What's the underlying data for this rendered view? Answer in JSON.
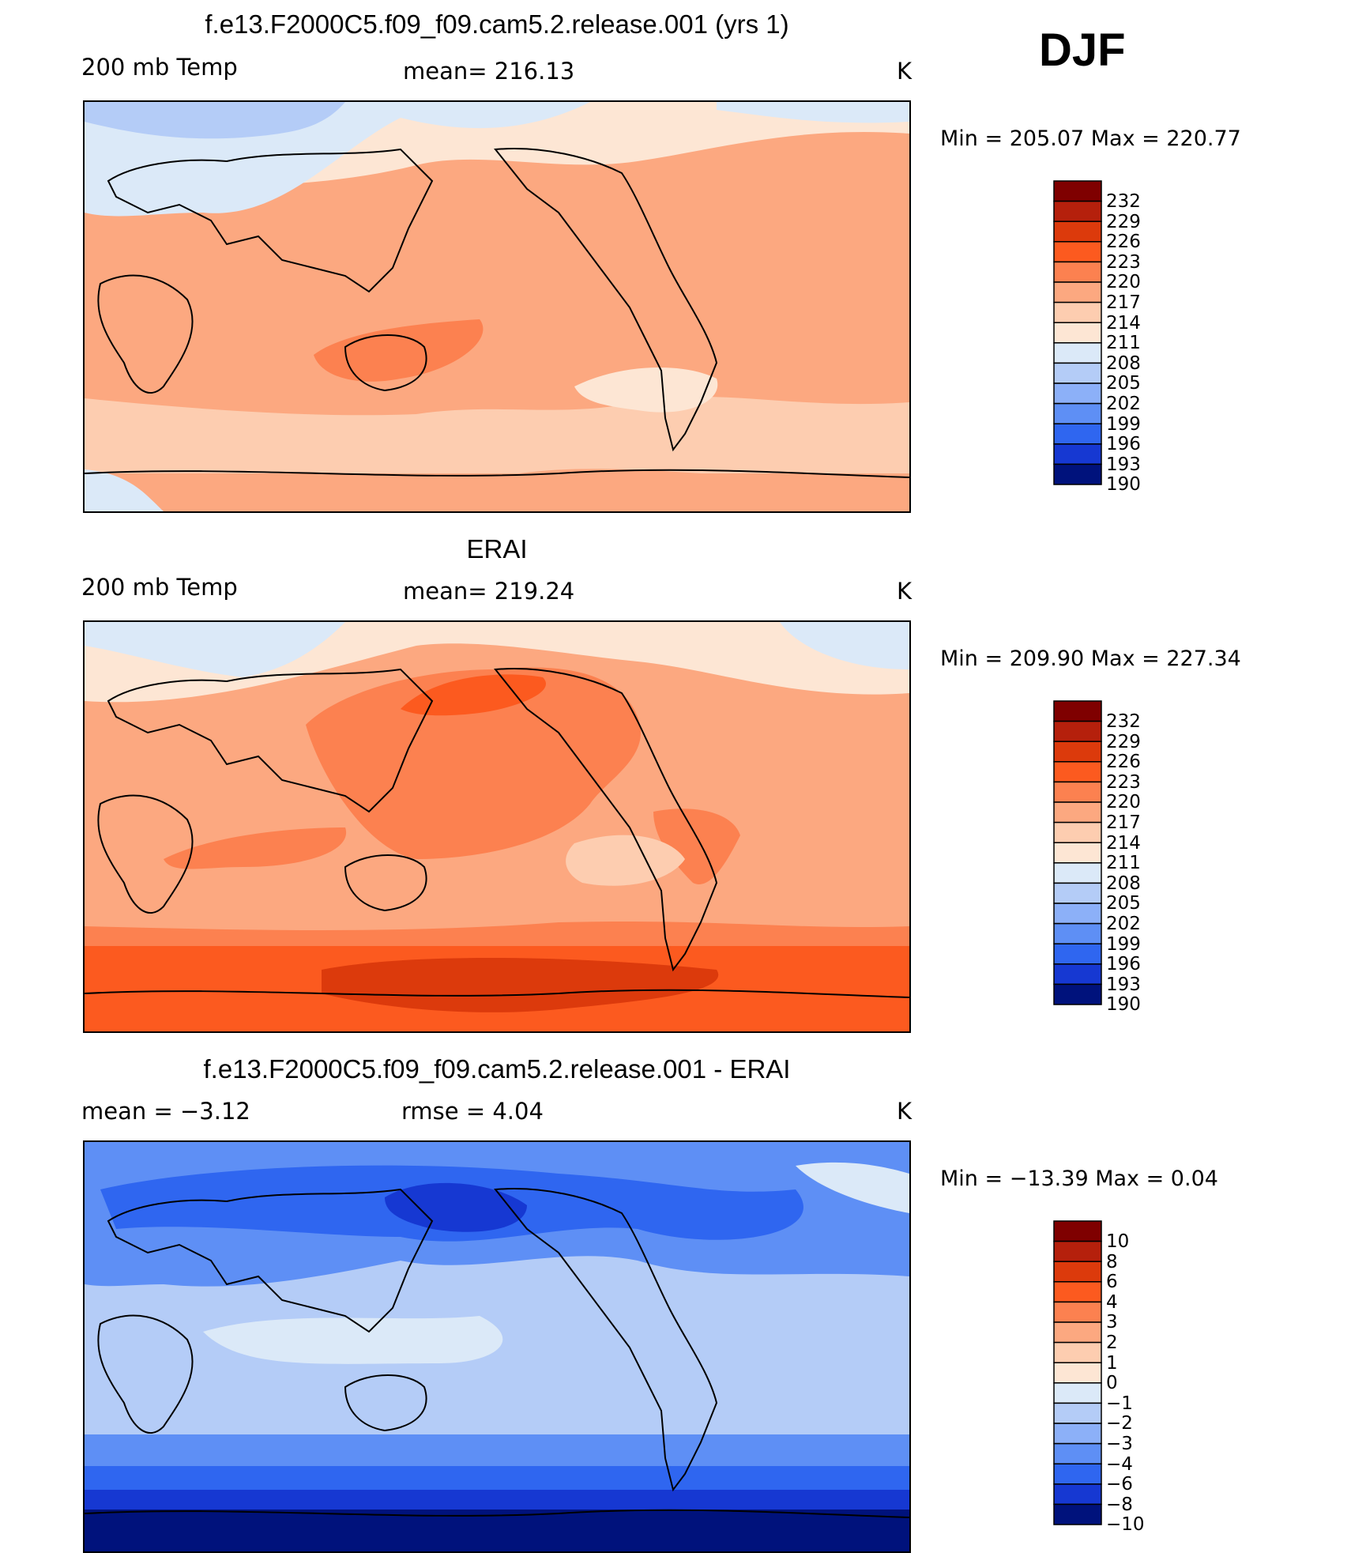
{
  "season": "DJF",
  "panels": [
    {
      "title": "f.e13.F2000C5.f09_f09.cam5.2.release.001 (yrs 1)",
      "left_label": "200 mb Temp",
      "center_label": "mean= 216.13",
      "units": "K",
      "minmax": "Min = 205.07 Max = 220.77",
      "palette": "temp",
      "levels": [
        "232",
        "229",
        "226",
        "223",
        "220",
        "217",
        "214",
        "211",
        "208",
        "205",
        "202",
        "199",
        "196",
        "193",
        "190"
      ]
    },
    {
      "title": "ERAI",
      "left_label": "200 mb Temp",
      "center_label": "mean= 219.24",
      "units": "K",
      "minmax": "Min = 209.90 Max = 227.34",
      "palette": "temp",
      "levels": [
        "232",
        "229",
        "226",
        "223",
        "220",
        "217",
        "214",
        "211",
        "208",
        "205",
        "202",
        "199",
        "196",
        "193",
        "190"
      ]
    },
    {
      "title": "f.e13.F2000C5.f09_f09.cam5.2.release.001 - ERAI",
      "left_label": "mean =   −3.12",
      "center_label": "rmse =    4.04",
      "units": "K",
      "minmax": "Min = −13.39 Max =    0.04",
      "palette": "diff",
      "levels": [
        "10",
        "8",
        "6",
        "4",
        "3",
        "2",
        "1",
        "0",
        "−1",
        "−2",
        "−3",
        "−4",
        "−6",
        "−8",
        "−10"
      ]
    }
  ],
  "colors": {
    "scale": [
      "#7f0000",
      "#b5200c",
      "#dc3a0c",
      "#fc5a1f",
      "#fc8150",
      "#fca880",
      "#fdcdb0",
      "#fde6d4",
      "#dbe9f8",
      "#b4ccf7",
      "#8cb0f8",
      "#5e8ff5",
      "#2f66f0",
      "#1638d2",
      "#00127c"
    ]
  },
  "chart_data": [
    {
      "type": "heatmap",
      "title": "f.e13.F2000C5.f09_f09.cam5.2.release.001 (yrs 1)",
      "variable": "200 mb Temp",
      "units": "K",
      "mean": 216.13,
      "min": 205.07,
      "max": 220.77,
      "contour_levels": [
        190,
        193,
        196,
        199,
        202,
        205,
        208,
        211,
        214,
        217,
        220,
        223,
        226,
        229,
        232
      ]
    },
    {
      "type": "heatmap",
      "title": "ERAI",
      "variable": "200 mb Temp",
      "units": "K",
      "mean": 219.24,
      "min": 209.9,
      "max": 227.34,
      "contour_levels": [
        190,
        193,
        196,
        199,
        202,
        205,
        208,
        211,
        214,
        217,
        220,
        223,
        226,
        229,
        232
      ]
    },
    {
      "type": "heatmap",
      "title": "f.e13.F2000C5.f09_f09.cam5.2.release.001 - ERAI",
      "units": "K",
      "mean": -3.12,
      "rmse": 4.04,
      "min": -13.39,
      "max": 0.04,
      "contour_levels": [
        -10,
        -8,
        -6,
        -4,
        -3,
        -2,
        -1,
        0,
        1,
        2,
        3,
        4,
        6,
        8,
        10
      ]
    }
  ]
}
